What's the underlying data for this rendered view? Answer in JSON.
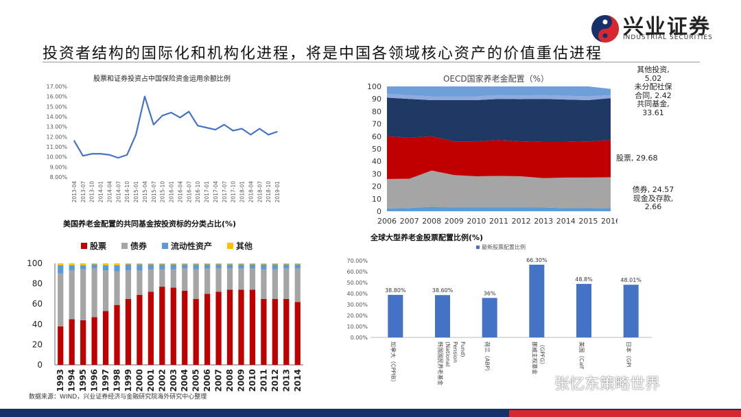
{
  "header": {
    "title": "投资者结构的国际化和机构化进程，将是中国各领域核心资产的价值重估进程",
    "logo_cn": "兴业证券",
    "logo_en": "INDUSTRIAL SECURITIES"
  },
  "footer": {
    "source": "数据来源：WIND，兴业证券经济与金融研究院海外研究中心整理",
    "watermark": "张忆东策略世界"
  },
  "colors": {
    "brand_blue": "#16306a",
    "brand_red": "#d7282f",
    "line_blue": "#4472c4",
    "stack_dark": "#1f3864",
    "stack_red": "#c00000",
    "stack_gray": "#a5a5a5",
    "stack_lightblue": "#5b9bd5",
    "stack_yellow": "#ffc000"
  },
  "chart1": {
    "title": "股票和证券投资占中国保险资金运用余额比例"
  },
  "chart2": {
    "title": "OECD国家养老金配置（%）",
    "annotations": [
      {
        "text": "其他投资,"
      },
      {
        "text": "5.02"
      },
      {
        "text": "未分配社保"
      },
      {
        "text": "合同, 2.42"
      },
      {
        "text": "共同基金,"
      },
      {
        "text": "33.61"
      },
      {
        "text": "股票, 29.68"
      },
      {
        "text": "债券, 24.57"
      },
      {
        "text": "现金及存款,"
      },
      {
        "text": "2.66"
      }
    ]
  },
  "chart3": {
    "title": "美国养老金配置的共同基金按投资标的分类占比(%)",
    "legend": [
      {
        "label": "股票",
        "color": "#c00000"
      },
      {
        "label": "债券",
        "color": "#a5a5a5"
      },
      {
        "label": "流动性资产",
        "color": "#5b9bd5"
      },
      {
        "label": "其他",
        "color": "#ffc000"
      }
    ]
  },
  "chart4": {
    "title": "全球大型养老金股票配置比例(%)",
    "legend": "最新股票配置比例"
  },
  "chart_data": [
    {
      "type": "line",
      "title": "股票和证券投资占中国保险资金运用余额比例",
      "x": [
        "2013-04",
        "2013-07",
        "2013-10",
        "2014-01",
        "2014-04",
        "2014-07",
        "2014-10",
        "2015-01",
        "2015-04",
        "2015-07",
        "2015-10",
        "2016-01",
        "2016-04",
        "2016-07",
        "2016-10",
        "2017-01",
        "2017-04",
        "2017-07",
        "2017-10",
        "2018-01",
        "2018-04",
        "2018-07",
        "2018-10",
        "2019-01"
      ],
      "series": [
        {
          "values": [
            11.6,
            10.1,
            10.3,
            10.3,
            10.2,
            9.9,
            10.2,
            12.2,
            16.0,
            13.2,
            14.1,
            14.4,
            13.9,
            14.5,
            13.1,
            12.9,
            12.7,
            13.2,
            12.6,
            12.8,
            12.2,
            12.8,
            12.2,
            12.5
          ]
        }
      ],
      "ylim": [
        8,
        17
      ],
      "yticks": [
        "8.00%",
        "9.00%",
        "10.00%",
        "11.00%",
        "12.00%",
        "13.00%",
        "14.00%",
        "15.00%",
        "16.00%",
        "17.00%"
      ]
    },
    {
      "type": "area",
      "title": "OECD国家养老金配置（%）",
      "x": [
        "2006",
        "2007",
        "2008",
        "2009",
        "2010",
        "2011",
        "2012",
        "2013",
        "2014",
        "2015",
        "2016"
      ],
      "series": [
        {
          "name": "现金及存款",
          "values": [
            2.3,
            2.6,
            3.6,
            3.0,
            3.0,
            3.0,
            3.0,
            3.0,
            2.5,
            2.5,
            2.7
          ]
        },
        {
          "name": "债券",
          "values": [
            23.5,
            23.4,
            29.0,
            26.0,
            25.0,
            25.3,
            25.0,
            23.5,
            24.5,
            24.5,
            24.6
          ]
        },
        {
          "name": "股票",
          "values": [
            34.2,
            33.0,
            27.4,
            27.0,
            28.0,
            28.7,
            28.0,
            29.0,
            28.5,
            29.0,
            29.7
          ]
        },
        {
          "name": "共同基金",
          "values": [
            31.0,
            31.0,
            29.0,
            33.0,
            33.0,
            33.0,
            33.8,
            34.5,
            34.0,
            33.0,
            33.6
          ]
        },
        {
          "name": "未分配社保合同",
          "values": [
            3.0,
            3.0,
            3.0,
            3.0,
            3.0,
            3.0,
            3.0,
            3.0,
            3.0,
            3.0,
            2.4
          ]
        },
        {
          "name": "其他投资",
          "values": [
            6.0,
            7.0,
            8.0,
            8.0,
            8.0,
            7.0,
            7.2,
            7.0,
            7.5,
            8.0,
            5.0
          ]
        }
      ],
      "ylim": [
        0,
        100
      ],
      "yticks": [
        0,
        10,
        20,
        30,
        40,
        50,
        60,
        70,
        80,
        90,
        100
      ]
    },
    {
      "type": "bar",
      "title": "美国养老金配置的共同基金按投资标的分类占比(%)",
      "categories": [
        "1993",
        "1994",
        "1995",
        "1996",
        "1997",
        "1998",
        "1999",
        "2000",
        "2001",
        "2002",
        "2003",
        "2004",
        "2005",
        "2006",
        "2007",
        "2008",
        "2009",
        "2010",
        "2011",
        "2012",
        "2013",
        "2014"
      ],
      "series": [
        {
          "name": "股票",
          "values": [
            38,
            45,
            44,
            47,
            53,
            59,
            65,
            69,
            72,
            77,
            76,
            73,
            65,
            70,
            72,
            74,
            74,
            74,
            65,
            65,
            65,
            62
          ]
        },
        {
          "name": "债券",
          "values": [
            52,
            48,
            50,
            48,
            40,
            33,
            28,
            24,
            22,
            17,
            18,
            22,
            29,
            25,
            23,
            21,
            21,
            21,
            29,
            29,
            30,
            33
          ]
        },
        {
          "name": "流动性资产",
          "values": [
            8,
            5,
            4,
            4,
            5,
            6,
            6,
            6,
            5,
            5,
            5,
            4,
            5,
            4,
            4,
            4,
            4,
            4,
            5,
            5,
            4,
            4
          ]
        },
        {
          "name": "其他",
          "values": [
            2,
            2,
            2,
            1,
            2,
            2,
            1,
            1,
            1,
            1,
            1,
            1,
            1,
            1,
            1,
            1,
            1,
            1,
            1,
            1,
            1,
            1
          ]
        }
      ],
      "ylim": [
        0,
        100
      ],
      "yticks": [
        0,
        20,
        40,
        60,
        80,
        100
      ]
    },
    {
      "type": "bar",
      "title": "全球大型养老金股票配置比例(%)",
      "categories": [
        "加拿大（CPPIB）",
        "韩国国民养老基金 (National Pension Fund)",
        "荷兰（ABP）",
        "挪威主权基金（GPFG）",
        "美国（CalPERS）",
        "日本（GPIF）"
      ],
      "category_labels_visible": [
        "加拿大（CPPIB）",
        "韩国国民养老基金\n(National\nPension\nFund)",
        "荷兰（ABP）",
        "挪威主权基金\n（GPFG）",
        "美国（Calf",
        "日本（GPI"
      ],
      "series": [
        {
          "name": "最新股票配置比例",
          "values": [
            38.8,
            38.6,
            36,
            66.3,
            48.8,
            48.01
          ]
        }
      ],
      "value_labels": [
        "38.80%",
        "38.60%",
        "36%",
        "66.30%",
        "48.8%",
        "48.01%"
      ],
      "ylim": [
        0,
        70
      ],
      "yticks": [
        "0.00%",
        "10.00%",
        "20.00%",
        "30.00%",
        "40.00%",
        "50.00%",
        "60.00%",
        "70.00%"
      ]
    }
  ]
}
